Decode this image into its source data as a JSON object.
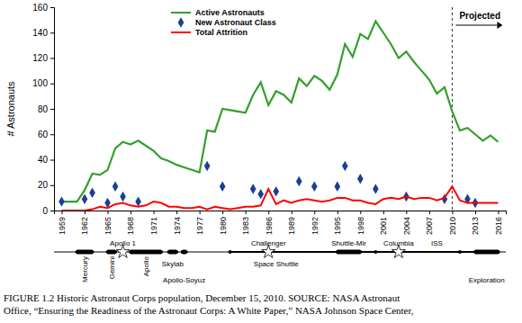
{
  "chart_data": {
    "type": "line",
    "y_label": "# Astronauts",
    "xlim": [
      1958,
      2017
    ],
    "xticks": [
      1959,
      1962,
      1965,
      1968,
      1971,
      1974,
      1977,
      1980,
      1983,
      1986,
      1989,
      1992,
      1995,
      1998,
      2001,
      2004,
      2007,
      2010,
      2013,
      2016
    ],
    "ylim": [
      0,
      160
    ],
    "yticks": [
      0,
      20,
      40,
      60,
      80,
      100,
      120,
      140,
      160
    ],
    "grid": false,
    "legend": "top-left",
    "annotations": [
      {
        "text": "Projected",
        "x": 2010
      }
    ],
    "series": [
      {
        "name": "Active Astronauts",
        "type": "line",
        "color": "#33a02c",
        "x": [
          1959,
          1960,
          1961,
          1962,
          1963,
          1964,
          1965,
          1966,
          1967,
          1968,
          1969,
          1970,
          1971,
          1972,
          1973,
          1974,
          1975,
          1976,
          1977,
          1978,
          1979,
          1980,
          1981,
          1982,
          1983,
          1984,
          1985,
          1986,
          1987,
          1988,
          1989,
          1990,
          1991,
          1992,
          1993,
          1994,
          1995,
          1996,
          1997,
          1998,
          1999,
          2000,
          2001,
          2002,
          2003,
          2004,
          2005,
          2006,
          2007,
          2008,
          2009,
          2010,
          2011,
          2012,
          2013,
          2014,
          2015,
          2016
        ],
        "values": [
          7,
          7,
          7,
          16,
          29,
          28,
          32,
          49,
          54,
          52,
          55,
          51,
          47,
          41,
          39,
          36,
          34,
          32,
          30,
          63,
          62,
          80,
          79,
          78,
          77,
          91,
          101,
          83,
          94,
          91,
          85,
          104,
          98,
          106,
          102,
          95,
          107,
          131,
          121,
          139,
          135,
          149,
          140,
          131,
          120,
          125,
          117,
          110,
          103,
          92,
          97,
          78,
          63,
          65,
          60,
          55,
          59,
          54
        ]
      },
      {
        "name": "New Astronaut Class",
        "type": "scatter",
        "marker": "diamond",
        "color": "#1c3f94",
        "x": [
          1959,
          1962,
          1963,
          1965,
          1966,
          1967,
          1969,
          1978,
          1980,
          1984,
          1985,
          1987,
          1990,
          1992,
          1995,
          1996,
          1998,
          2000,
          2004,
          2009,
          2012,
          2013
        ],
        "values": [
          7,
          9,
          14,
          6,
          19,
          11,
          7,
          35,
          19,
          17,
          13,
          15,
          23,
          19,
          19,
          35,
          25,
          17,
          11,
          9,
          9,
          6
        ]
      },
      {
        "name": "Total Attrition",
        "type": "line",
        "color": "#ff0000",
        "x": [
          1959,
          1960,
          1961,
          1962,
          1963,
          1964,
          1965,
          1966,
          1967,
          1968,
          1969,
          1970,
          1971,
          1972,
          1973,
          1974,
          1975,
          1976,
          1977,
          1978,
          1979,
          1980,
          1981,
          1982,
          1983,
          1984,
          1985,
          1986,
          1987,
          1988,
          1989,
          1990,
          1991,
          1992,
          1993,
          1994,
          1995,
          1996,
          1997,
          1998,
          1999,
          2000,
          2001,
          2002,
          2003,
          2004,
          2005,
          2006,
          2007,
          2008,
          2009,
          2010,
          2011,
          2012,
          2013,
          2014,
          2015,
          2016
        ],
        "values": [
          0,
          0,
          0,
          0,
          1,
          3,
          2,
          5,
          6,
          4,
          3,
          4,
          7,
          6,
          3,
          3,
          2,
          2,
          3,
          1,
          3,
          2,
          1,
          2,
          3,
          3,
          4,
          17,
          5,
          8,
          6,
          8,
          9,
          8,
          7,
          8,
          10,
          10,
          8,
          8,
          6,
          5,
          9,
          10,
          9,
          11,
          9,
          10,
          10,
          8,
          10,
          19,
          8,
          6,
          6,
          6,
          6,
          6
        ]
      }
    ]
  },
  "timeline": {
    "programs": [
      {
        "label": "Mercury",
        "start": 1961,
        "end": 1963
      },
      {
        "label": "Gemini",
        "start": 1965,
        "end": 1966
      },
      {
        "label": "Apollo",
        "start": 1968,
        "end": 1972
      },
      {
        "label": "Skylab",
        "start": 1973,
        "end": 1974
      },
      {
        "label": "Apollo-Soyuz",
        "start": 1975,
        "end": 1975
      },
      {
        "label": "Space Shuttle",
        "start": 1981,
        "end": 2011
      },
      {
        "label": "Shuttle-Mir",
        "start": 1995,
        "end": 1998
      },
      {
        "label": "ISS",
        "start": 2000,
        "end": 2016
      },
      {
        "label": "Exploration",
        "start": 2013,
        "end": 2016
      }
    ],
    "events": [
      {
        "label": "Apollo 1",
        "year": 1967
      },
      {
        "label": "Challenger",
        "year": 1986
      },
      {
        "label": "Columbia",
        "year": 2003
      }
    ]
  },
  "caption": [
    "FIGURE 1.2 Historic Astronaut Corps population, December 15, 2010. SOURCE:  NASA Astronaut",
    "Office, “Ensuring the Readiness of the Astronaut Corps: A White Paper,” NASA Johnson Space Center,"
  ]
}
